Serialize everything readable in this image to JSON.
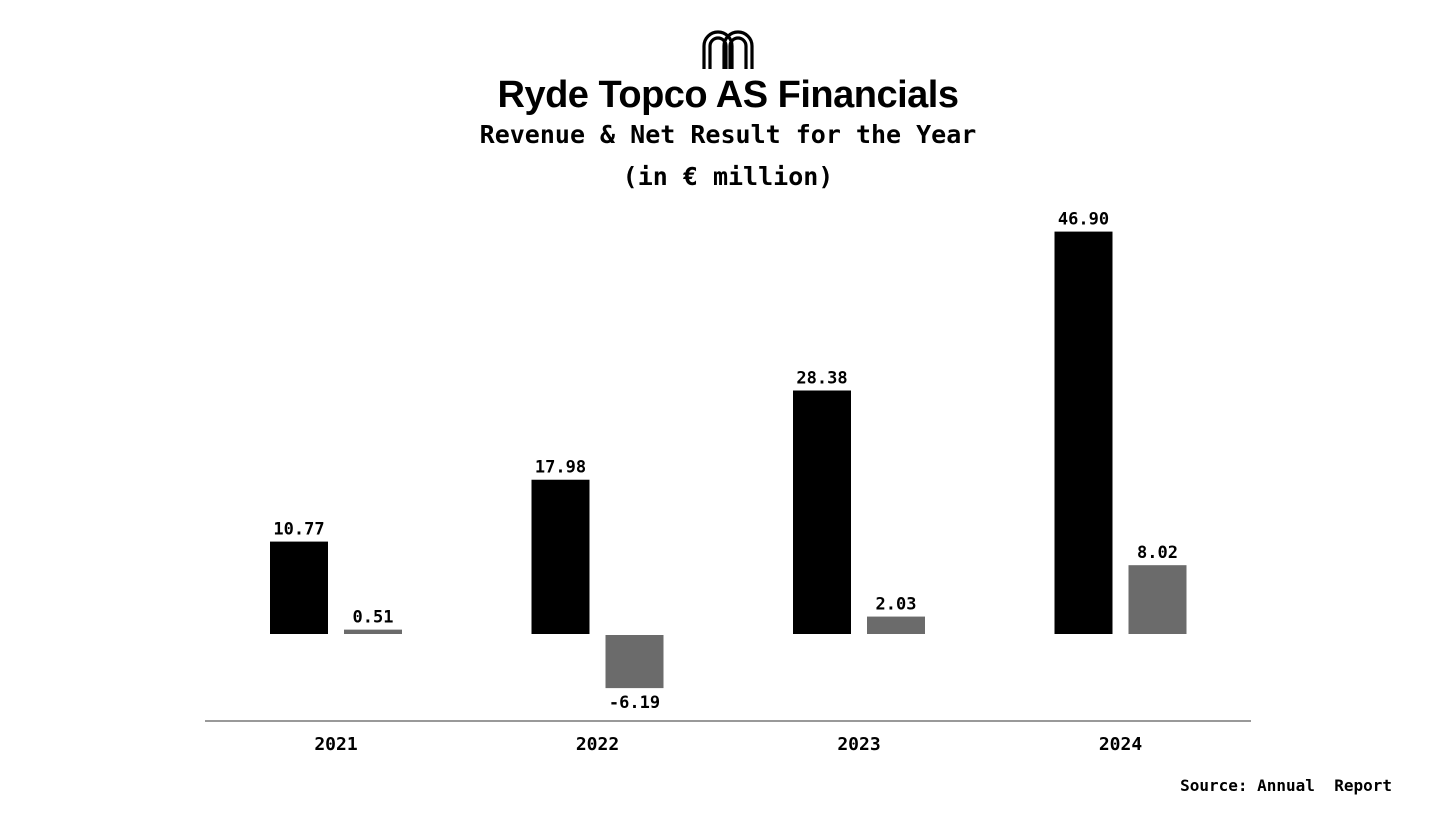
{
  "header": {
    "title": "Ryde Topco AS Financials",
    "subtitle": "Revenue & Net Result for the Year",
    "unit": "(in € million)",
    "logo_icon": "arches-logo-icon"
  },
  "chart_data": {
    "type": "bar",
    "categories": [
      "2021",
      "2022",
      "2023",
      "2024"
    ],
    "series": [
      {
        "values": [
          10.77,
          17.98,
          28.38,
          46.9
        ],
        "labels": [
          "10.77",
          "17.98",
          "28.38",
          "46.90"
        ],
        "color": "#000000"
      },
      {
        "values": [
          0.51,
          -6.19,
          2.03,
          8.02
        ],
        "labels": [
          "0.51",
          "-6.19",
          "2.03",
          "8.02"
        ],
        "color": "#6b6b6b"
      }
    ],
    "grid": false,
    "legend": "none"
  },
  "footer": {
    "source": "Source: Annual  Report"
  }
}
